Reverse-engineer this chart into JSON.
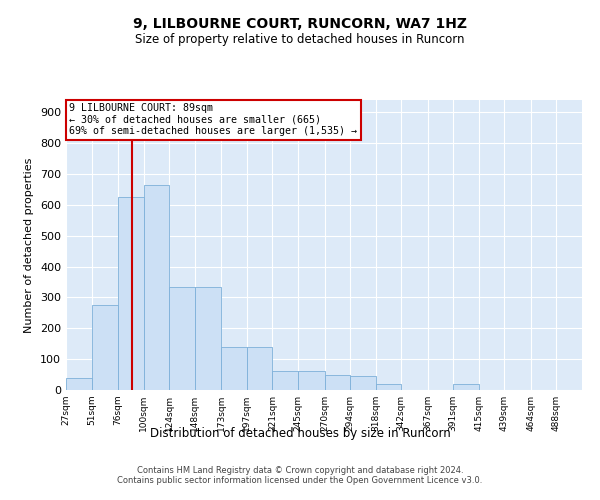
{
  "title": "9, LILBOURNE COURT, RUNCORN, WA7 1HZ",
  "subtitle": "Size of property relative to detached houses in Runcorn",
  "xlabel": "Distribution of detached houses by size in Runcorn",
  "ylabel": "Number of detached properties",
  "bar_color": "#cce0f5",
  "bar_edge_color": "#7db0d9",
  "background_color": "#ddeaf8",
  "grid_color": "#ffffff",
  "vline_x": 89,
  "vline_color": "#cc0000",
  "annotation_text": "9 LILBOURNE COURT: 89sqm\n← 30% of detached houses are smaller (665)\n69% of semi-detached houses are larger (1,535) →",
  "annotation_box_color": "#ffffff",
  "annotation_box_edge": "#cc0000",
  "bin_edges": [
    27,
    51,
    76,
    100,
    124,
    148,
    173,
    197,
    221,
    245,
    270,
    294,
    318,
    342,
    367,
    391,
    415,
    439,
    464,
    488,
    512
  ],
  "bar_heights": [
    40,
    275,
    625,
    665,
    335,
    335,
    140,
    140,
    60,
    60,
    50,
    45,
    20,
    0,
    0,
    20,
    0,
    0,
    0,
    0
  ],
  "ylim": [
    0,
    940
  ],
  "yticks": [
    0,
    100,
    200,
    300,
    400,
    500,
    600,
    700,
    800,
    900
  ],
  "footnote": "Contains HM Land Registry data © Crown copyright and database right 2024.\nContains public sector information licensed under the Open Government Licence v3.0."
}
